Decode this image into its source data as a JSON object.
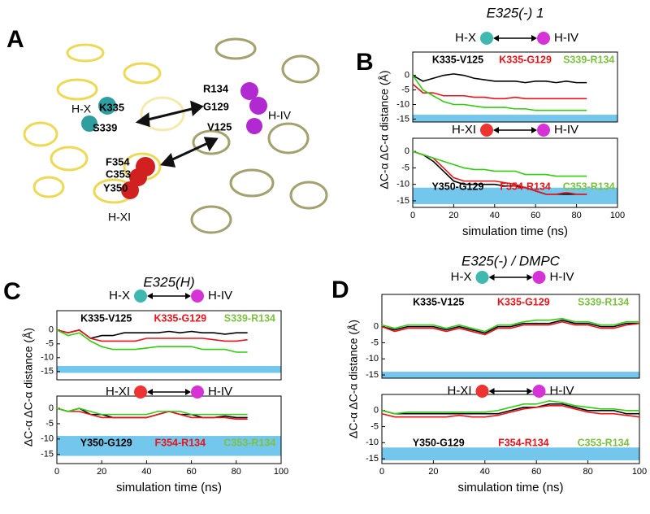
{
  "figure_a": {
    "panel": "A",
    "labels": [
      "H-X",
      "K335",
      "S339",
      "R134",
      "G129",
      "H-IV",
      "V125",
      "F354",
      "C353",
      "Y350",
      "H-XI"
    ]
  },
  "chart_data": [
    {
      "type": "line",
      "panel": "B",
      "title": "E325(-) 1",
      "annotation_left": "H-X",
      "annotation_right": "H-IV",
      "annotation_colors": [
        "#3fb8b0",
        "#d633d6"
      ],
      "ylabel": "ΔC-α ΔC-α distance (Å)",
      "x": [
        0,
        5,
        10,
        15,
        20,
        25,
        30,
        35,
        40,
        45,
        50,
        55,
        60,
        65,
        70,
        75,
        80,
        85
      ],
      "series": [
        {
          "name": "K335-V125",
          "color": "#000000",
          "values": [
            0,
            -2,
            -1,
            0,
            0.5,
            0,
            -1,
            -1.5,
            -2,
            -2,
            -2,
            -2.5,
            -2,
            -2,
            -2.5,
            -2,
            -2.5,
            -2.5
          ]
        },
        {
          "name": "K335-G129",
          "color": "#e8141a",
          "values": [
            -3,
            -6,
            -6,
            -7,
            -7,
            -7,
            -7.5,
            -7.5,
            -8,
            -8,
            -7.5,
            -8,
            -8,
            -8,
            -8,
            -8,
            -8,
            -8
          ]
        },
        {
          "name": "S339-R134",
          "color": "#33cc11",
          "values": [
            0,
            -5,
            -7,
            -9,
            -10,
            -10,
            -10.5,
            -11,
            -11,
            -11,
            -11.5,
            -11.5,
            -12,
            -12,
            -12,
            -12,
            -12,
            -12
          ]
        }
      ],
      "xlim": [
        0,
        100
      ],
      "ylim": [
        -16,
        8
      ],
      "yticks": [
        0,
        -5,
        -10,
        -15
      ],
      "band": [
        -16,
        -13.5
      ],
      "band_color": "#74c7ec"
    },
    {
      "type": "line",
      "annotation_left": "H-XI",
      "annotation_right": "H-IV",
      "annotation_colors": [
        "#ee3333",
        "#d633d6"
      ],
      "x": [
        0,
        5,
        10,
        15,
        20,
        25,
        30,
        35,
        40,
        45,
        50,
        55,
        60,
        65,
        70,
        75,
        80,
        85
      ],
      "series": [
        {
          "name": "Y350-G129",
          "color": "#000000",
          "values": [
            0,
            -1,
            -3,
            -6,
            -9,
            -10,
            -10,
            -10,
            -10,
            -10.5,
            -10.5,
            -11,
            -12,
            -13,
            -13,
            -13,
            -13,
            -13
          ]
        },
        {
          "name": "F354-R134",
          "color": "#e8141a",
          "values": [
            0,
            -1,
            -2,
            -5,
            -8,
            -9,
            -9,
            -9,
            -9,
            -9.5,
            -10,
            -11,
            -12,
            -13,
            -13,
            -12.5,
            -13,
            -13
          ]
        },
        {
          "name": "C353-R134",
          "color": "#33cc11",
          "values": [
            0,
            -1,
            -2,
            -3,
            -4,
            -5,
            -5.5,
            -5.5,
            -6,
            -6,
            -6,
            -7,
            -7,
            -7,
            -7.5,
            -7.5,
            -7.5,
            -7.5
          ]
        }
      ],
      "xlim": [
        0,
        100
      ],
      "ylim": [
        -17,
        4
      ],
      "yticks": [
        0,
        -5,
        -10,
        -15
      ],
      "xticks": [
        0,
        20,
        40,
        60,
        80,
        100
      ],
      "xlabel": "simulation time (ns)",
      "band": [
        -16,
        -11
      ],
      "band_color": "#74c7ec"
    },
    {
      "type": "line",
      "panel": "C",
      "title": "E325(H)",
      "annotation_left": "H-X",
      "annotation_right": "H-IV",
      "annotation_colors": [
        "#3fb8b0",
        "#d633d6"
      ],
      "ylabel": "ΔC-α ΔC-α distance (Å)",
      "x": [
        0,
        5,
        10,
        15,
        20,
        25,
        30,
        35,
        40,
        45,
        50,
        55,
        60,
        65,
        70,
        75,
        80,
        85
      ],
      "series": [
        {
          "name": "K335-V125",
          "color": "#000000",
          "values": [
            0,
            -1,
            0,
            -3,
            -2,
            -2,
            -1,
            -1,
            -1,
            -1,
            -0.5,
            -1,
            -0.5,
            -1,
            -1,
            -1.5,
            -1,
            -1
          ]
        },
        {
          "name": "K335-G129",
          "color": "#e8141a",
          "values": [
            0,
            -1,
            0,
            -3,
            -4,
            -4,
            -4,
            -4,
            -3,
            -3,
            -3,
            -3,
            -3,
            -3,
            -3.5,
            -4,
            -4,
            -3.5
          ]
        },
        {
          "name": "S339-R134",
          "color": "#33cc11",
          "values": [
            0,
            -2,
            -1,
            -4,
            -6,
            -7,
            -7,
            -7,
            -6.5,
            -6,
            -6,
            -6,
            -6,
            -7,
            -7,
            -7,
            -8,
            -8
          ]
        }
      ],
      "xlim": [
        0,
        100
      ],
      "ylim": [
        -18,
        7
      ],
      "yticks": [
        0,
        -5,
        -10,
        -15
      ],
      "band": [
        -15.5,
        -13
      ],
      "band_color": "#74c7ec"
    },
    {
      "type": "line",
      "annotation_left": "H-XI",
      "annotation_right": "H-IV",
      "annotation_colors": [
        "#ee3333",
        "#d633d6"
      ],
      "x": [
        0,
        5,
        10,
        15,
        20,
        25,
        30,
        35,
        40,
        45,
        50,
        55,
        60,
        65,
        70,
        75,
        80,
        85
      ],
      "series": [
        {
          "name": "Y350-G129",
          "color": "#000000",
          "values": [
            0,
            -1,
            0,
            -2,
            -2,
            -3,
            -3,
            -3,
            -3,
            -2,
            -1,
            -2,
            -2,
            -3,
            -3,
            -2.5,
            -3,
            -3
          ]
        },
        {
          "name": "F354-R134",
          "color": "#e8141a",
          "values": [
            0,
            -1,
            -1,
            -2,
            -3,
            -3,
            -3,
            -3,
            -3,
            -2,
            -1,
            -2,
            -3,
            -3,
            -3,
            -3,
            -3.5,
            -3.5
          ]
        },
        {
          "name": "C353-R134",
          "color": "#33cc11",
          "values": [
            0,
            -1,
            0,
            -1,
            -2,
            -2,
            -2,
            -2,
            -2,
            -1,
            -1,
            -1,
            -2,
            -2,
            -2,
            -2,
            -2,
            -2
          ]
        }
      ],
      "xlim": [
        0,
        100
      ],
      "ylim": [
        -18,
        4
      ],
      "yticks": [
        0,
        -5,
        -10,
        -15
      ],
      "xticks": [
        0,
        20,
        40,
        60,
        80,
        100
      ],
      "xlabel": "simulation time (ns)",
      "band": [
        -15.5,
        -9
      ],
      "band_color": "#74c7ec"
    },
    {
      "type": "line",
      "panel": "D",
      "title": "E325(-) / DMPC",
      "annotation_left": "H-X",
      "annotation_right": "H-IV",
      "annotation_colors": [
        "#3fb8b0",
        "#d633d6"
      ],
      "ylabel": "ΔC-α ΔC-α distance (Å)",
      "x": [
        0,
        5,
        10,
        15,
        20,
        25,
        30,
        35,
        40,
        45,
        50,
        55,
        60,
        65,
        70,
        75,
        80,
        85,
        90,
        95,
        100
      ],
      "series": [
        {
          "name": "K335-V125",
          "color": "#000000",
          "values": [
            0,
            -1,
            0,
            0,
            0,
            -1,
            0,
            -1,
            -2,
            0,
            0,
            1,
            1,
            1,
            2,
            1,
            1,
            0,
            0,
            1,
            1
          ]
        },
        {
          "name": "K335-G129",
          "color": "#e8141a",
          "values": [
            0,
            -1.5,
            -0.5,
            -0.5,
            -0.5,
            -1.5,
            -0.5,
            -1.5,
            -2.5,
            -0.5,
            -0.5,
            0.5,
            0.5,
            0.5,
            1.5,
            0.5,
            0.5,
            -0.5,
            -0.5,
            0.5,
            1
          ]
        },
        {
          "name": "S339-R134",
          "color": "#33cc11",
          "values": [
            0.5,
            -0.5,
            0.5,
            0.5,
            0.5,
            -0.5,
            0.5,
            -0.5,
            -1.5,
            0.5,
            0.5,
            1.5,
            2,
            2,
            2.5,
            1.5,
            1.5,
            0.5,
            0.5,
            1.5,
            1.5
          ]
        }
      ],
      "xlim": [
        0,
        100
      ],
      "ylim": [
        -16,
        10
      ],
      "yticks": [
        0,
        -5,
        -10,
        -15
      ],
      "band": [
        -16,
        -14
      ],
      "band_color": "#74c7ec"
    },
    {
      "type": "line",
      "annotation_left": "H-XI",
      "annotation_right": "H-IV",
      "annotation_colors": [
        "#ee3333",
        "#d633d6"
      ],
      "x": [
        0,
        5,
        10,
        15,
        20,
        25,
        30,
        35,
        40,
        45,
        50,
        55,
        60,
        65,
        70,
        75,
        80,
        85,
        90,
        95,
        100
      ],
      "series": [
        {
          "name": "Y350-G129",
          "color": "#000000",
          "values": [
            0,
            -1,
            -1,
            -1,
            -1,
            -1,
            -1,
            -1,
            -1,
            -1,
            0,
            1,
            1,
            2,
            2,
            1,
            0,
            0,
            0,
            -1,
            -1
          ]
        },
        {
          "name": "F354-R134",
          "color": "#e8141a",
          "values": [
            -1,
            -2,
            -2,
            -2,
            -2,
            -2,
            -1.5,
            -2,
            -2,
            -1.5,
            -0.5,
            0.5,
            1,
            1.5,
            1.5,
            0.5,
            -0.5,
            -1,
            -1,
            -1.5,
            -2
          ]
        },
        {
          "name": "C353-R134",
          "color": "#33cc11",
          "values": [
            0,
            -1,
            -0.5,
            -0.5,
            -0.5,
            -0.5,
            -0.5,
            -0.5,
            -0.5,
            0,
            1,
            2,
            2,
            3,
            2.5,
            1.5,
            1,
            0.5,
            0.5,
            0,
            0
          ]
        }
      ],
      "xlim": [
        0,
        100
      ],
      "ylim": [
        -16.5,
        5
      ],
      "yticks": [
        0,
        -5,
        -10,
        -15
      ],
      "xticks": [
        0,
        20,
        40,
        60,
        80,
        100
      ],
      "xlabel": "simulation time (ns)",
      "band": [
        -15.5,
        -11.5
      ],
      "band_color": "#74c7ec"
    }
  ]
}
